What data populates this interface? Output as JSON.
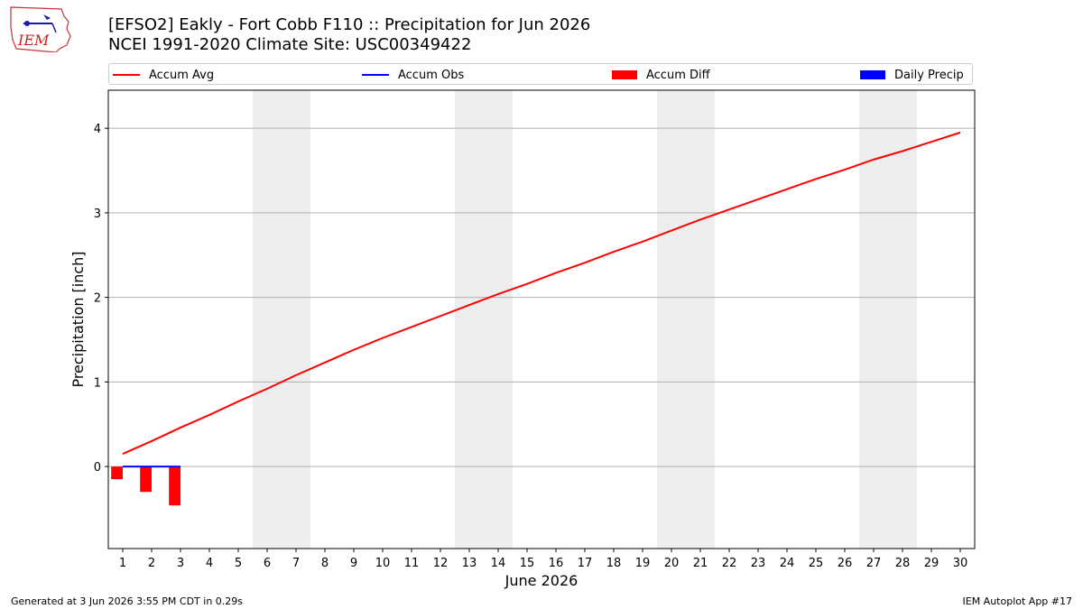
{
  "header": {
    "title_line1": "[EFSO2] Eakly - Fort Cobb F110 :: Precipitation for Jun 2026",
    "title_line2": "NCEI 1991-2020 Climate Site: USC00349422"
  },
  "logo": {
    "text": "IEM",
    "icon": "iem-iowa-map-logo"
  },
  "legend": {
    "items": [
      {
        "label": "Accum Avg",
        "color": "#ff0000",
        "kind": "line"
      },
      {
        "label": "Accum Obs",
        "color": "#0000ff",
        "kind": "line"
      },
      {
        "label": "Accum Diff",
        "color": "#ff0000",
        "kind": "bar"
      },
      {
        "label": "Daily Precip",
        "color": "#0000ff",
        "kind": "bar"
      }
    ]
  },
  "footer": {
    "left": "Generated at 3 Jun 2026 3:55 PM CDT in 0.29s",
    "right": "IEM Autoplot App #17"
  },
  "chart_data": {
    "type": "line",
    "xlabel": "June 2026",
    "ylabel": "Precipitation [inch]",
    "x": [
      1,
      2,
      3,
      4,
      5,
      6,
      7,
      8,
      9,
      10,
      11,
      12,
      13,
      14,
      15,
      16,
      17,
      18,
      19,
      20,
      21,
      22,
      23,
      24,
      25,
      26,
      27,
      28,
      29,
      30
    ],
    "xlim": [
      0.5,
      30.5
    ],
    "ylim": [
      -0.97,
      4.45
    ],
    "yticks": [
      0,
      1,
      2,
      3,
      4
    ],
    "grid": "horizontal",
    "weekend_shading": [
      [
        5.5,
        7.5
      ],
      [
        12.5,
        14.5
      ],
      [
        19.5,
        21.5
      ],
      [
        26.5,
        28.5
      ]
    ],
    "series": [
      {
        "name": "Accum Avg",
        "type": "line",
        "color": "#ff0000",
        "values": [
          0.15,
          0.3,
          0.46,
          0.61,
          0.77,
          0.92,
          1.08,
          1.23,
          1.38,
          1.52,
          1.65,
          1.78,
          1.91,
          2.04,
          2.16,
          2.29,
          2.41,
          2.54,
          2.66,
          2.79,
          2.92,
          3.04,
          3.16,
          3.28,
          3.4,
          3.51,
          3.63,
          3.73,
          3.84,
          3.95
        ]
      },
      {
        "name": "Accum Obs",
        "type": "line",
        "color": "#0000ff",
        "x": [
          1,
          2,
          3
        ],
        "values": [
          0.0,
          0.0,
          0.0
        ]
      },
      {
        "name": "Accum Diff",
        "type": "bar",
        "color": "#ff0000",
        "x": [
          1,
          2,
          3
        ],
        "values": [
          -0.15,
          -0.3,
          -0.46
        ]
      },
      {
        "name": "Daily Precip",
        "type": "bar",
        "color": "#0000ff",
        "x": [
          1,
          2,
          3
        ],
        "values": [
          0.0,
          0.0,
          0.0
        ]
      }
    ]
  }
}
